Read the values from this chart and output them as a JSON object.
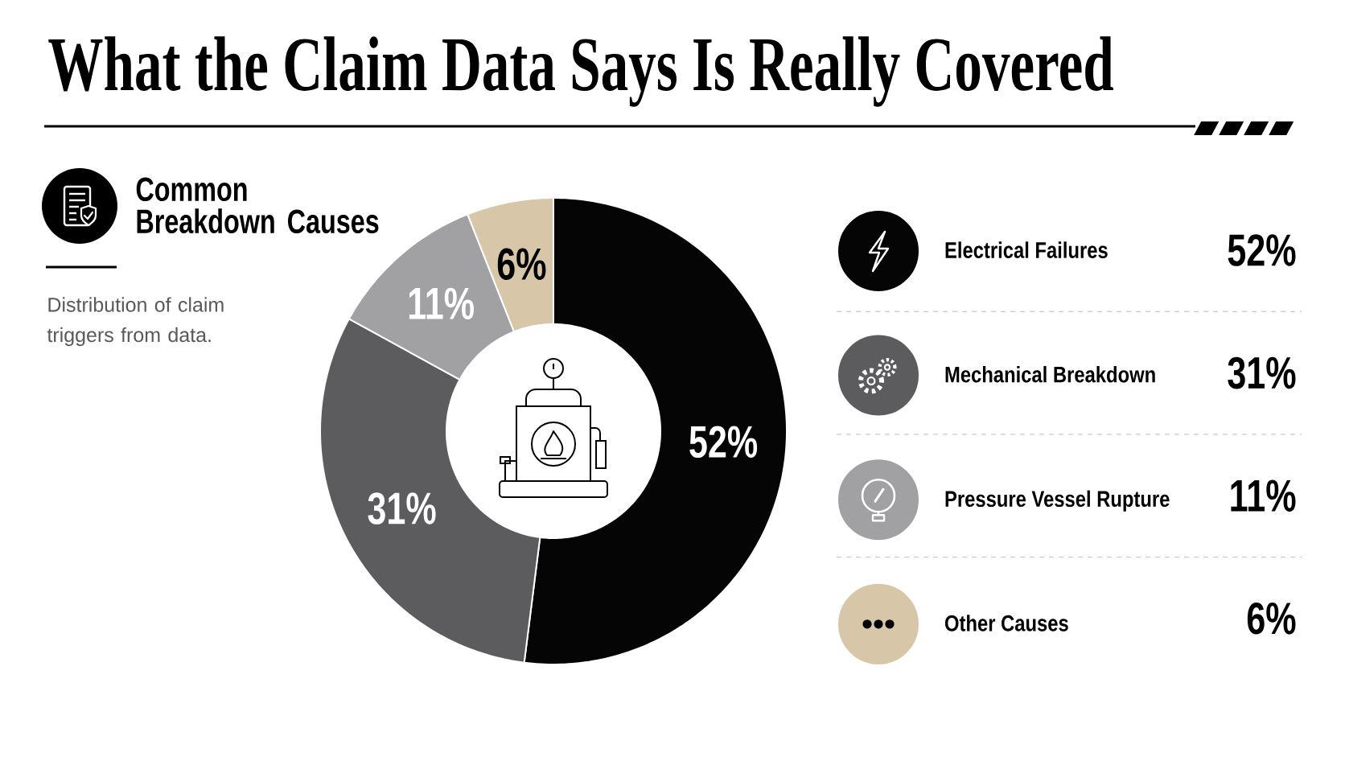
{
  "chart_data": {
    "type": "donut",
    "title": "What the Claim Data Says Is Really Covered",
    "subtitle": "Common Breakdown Causes",
    "annotations": [
      "Distribution of claim triggers from data."
    ],
    "categories": [
      "Electrical Failures",
      "Mechanical Breakdown",
      "Pressure Vessel Rupture",
      "Other Causes"
    ],
    "values": [
      52,
      31,
      11,
      6
    ],
    "value_labels": [
      "52%",
      "31%",
      "11%",
      "6%"
    ],
    "colors": [
      "#050505",
      "#5c5c5e",
      "#a1a1a3",
      "#d8c6a9"
    ],
    "legend": "right"
  }
}
